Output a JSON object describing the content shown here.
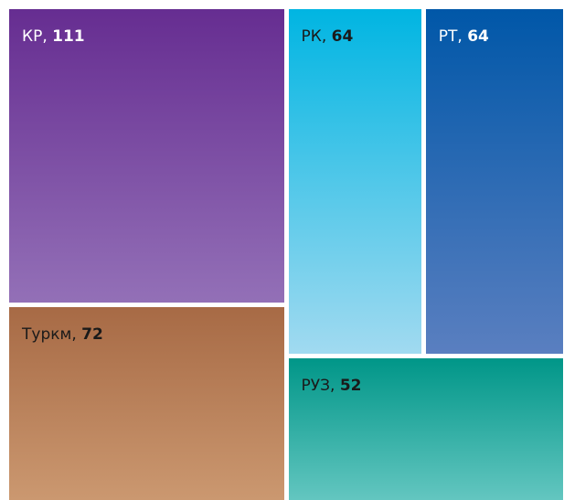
{
  "chart_data": {
    "type": "treemap",
    "title": "",
    "items": [
      {
        "name": "КР",
        "value": 111,
        "separator": ", ",
        "color_top": "#662d91",
        "color_bottom": "#9370b7",
        "label_color": "#ffffff"
      },
      {
        "name": "Туркм",
        "value": 72,
        "separator": ", ",
        "color_top": "#a76a45",
        "color_bottom": "#cb9870",
        "label_color": "#1a1a1a"
      },
      {
        "name": "РК",
        "value": 64,
        "separator": ", ",
        "color_top": "#00b5e2",
        "color_bottom": "#a1daf0",
        "label_color": "#1a1a1a"
      },
      {
        "name": "РТ",
        "value": 64,
        "separator": ", ",
        "color_top": "#0057a8",
        "color_bottom": "#5a7fc0",
        "label_color": "#ffffff"
      },
      {
        "name": "РУЗ",
        "value": 52,
        "separator": ", ",
        "color_top": "#009688",
        "color_bottom": "#63c6c0",
        "label_color": "#1a1a1a"
      }
    ]
  }
}
